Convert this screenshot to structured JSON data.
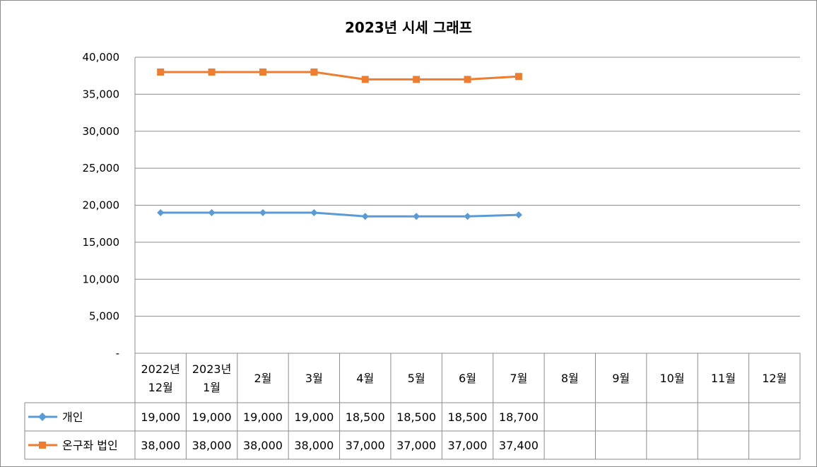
{
  "chart_data": {
    "type": "line",
    "title": "2023년 시세 그래프",
    "xlabel": "",
    "ylabel": "",
    "categories": [
      [
        "2022년",
        "12월"
      ],
      [
        "2023년",
        "1월"
      ],
      [
        "2월"
      ],
      [
        "3월"
      ],
      [
        "4월"
      ],
      [
        "5월"
      ],
      [
        "6월"
      ],
      [
        "7월"
      ],
      [
        "8월"
      ],
      [
        "9월"
      ],
      [
        "10월"
      ],
      [
        "11월"
      ],
      [
        "12월"
      ]
    ],
    "y_ticks": [
      "-",
      "5,000",
      "10,000",
      "15,000",
      "20,000",
      "25,000",
      "30,000",
      "35,000",
      "40,000"
    ],
    "ylim": [
      0,
      40000
    ],
    "grid": true,
    "legend_placement": "data-table",
    "series": [
      {
        "name": "개인",
        "color": "#5b9bd5",
        "marker": "diamond",
        "values": [
          19000,
          19000,
          19000,
          19000,
          18500,
          18500,
          18500,
          18700,
          null,
          null,
          null,
          null,
          null
        ],
        "table_values": [
          "19,000",
          "19,000",
          "19,000",
          "19,000",
          "18,500",
          "18,500",
          "18,500",
          "18,700",
          "",
          "",
          "",
          "",
          ""
        ]
      },
      {
        "name": "온구좌 법인",
        "color": "#ed7d31",
        "marker": "square",
        "values": [
          38000,
          38000,
          38000,
          38000,
          37000,
          37000,
          37000,
          37400,
          null,
          null,
          null,
          null,
          null
        ],
        "table_values": [
          "38,000",
          "38,000",
          "38,000",
          "38,000",
          "37,000",
          "37,000",
          "37,000",
          "37,400",
          "",
          "",
          "",
          "",
          ""
        ]
      }
    ]
  }
}
